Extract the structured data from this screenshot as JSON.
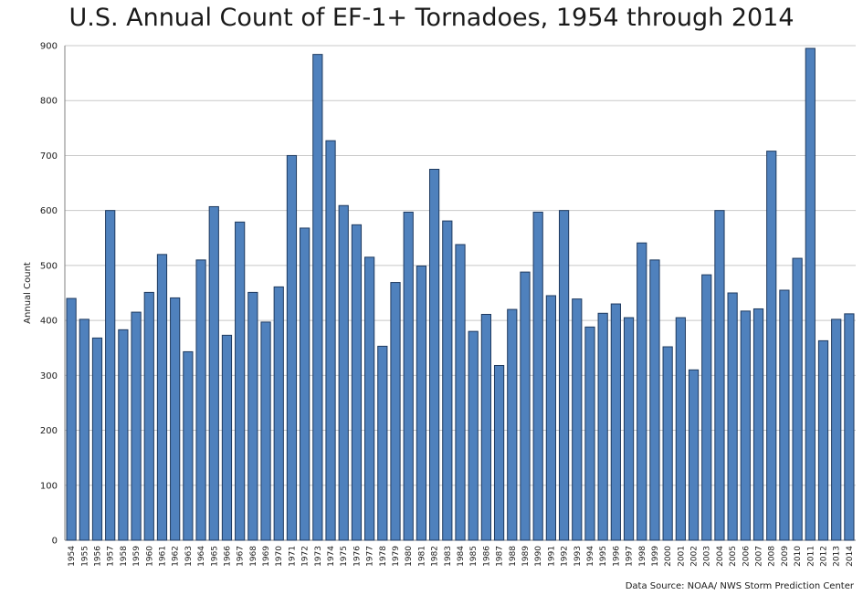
{
  "chart_data": {
    "type": "bar",
    "title": "U.S. Annual Count of EF-1+ Tornadoes, 1954 through 2014",
    "xlabel": "",
    "ylabel": "Annual Count",
    "ylim": [
      0,
      900
    ],
    "yticks": [
      0,
      100,
      200,
      300,
      400,
      500,
      600,
      700,
      800,
      900
    ],
    "grid": "horizontal",
    "legend": "none",
    "bar_color": "#4f81bd",
    "bar_edge_color": "#1f3a5f",
    "grid_color": "#c8c8c8",
    "categories": [
      "1954",
      "1955",
      "1956",
      "1957",
      "1958",
      "1959",
      "1960",
      "1961",
      "1962",
      "1963",
      "1964",
      "1965",
      "1966",
      "1967",
      "1968",
      "1969",
      "1970",
      "1971",
      "1972",
      "1973",
      "1974",
      "1975",
      "1976",
      "1977",
      "1978",
      "1979",
      "1980",
      "1981",
      "1982",
      "1983",
      "1984",
      "1985",
      "1986",
      "1987",
      "1988",
      "1989",
      "1990",
      "1991",
      "1992",
      "1993",
      "1994",
      "1995",
      "1996",
      "1997",
      "1998",
      "1999",
      "2000",
      "2001",
      "2002",
      "2003",
      "2004",
      "2005",
      "2006",
      "2007",
      "2008",
      "2009",
      "2010",
      "2011",
      "2012",
      "2013",
      "2014"
    ],
    "values": [
      440,
      402,
      368,
      600,
      383,
      415,
      451,
      520,
      441,
      343,
      510,
      607,
      373,
      579,
      451,
      397,
      461,
      700,
      568,
      884,
      727,
      609,
      574,
      515,
      353,
      469,
      597,
      499,
      675,
      581,
      538,
      380,
      411,
      318,
      420,
      488,
      597,
      445,
      600,
      439,
      388,
      413,
      430,
      405,
      541,
      510,
      352,
      405,
      310,
      483,
      600,
      450,
      417,
      421,
      708,
      455,
      513,
      895,
      363,
      402,
      412
    ],
    "source": "Data Source: NOAA/ NWS Storm Prediction Center"
  }
}
